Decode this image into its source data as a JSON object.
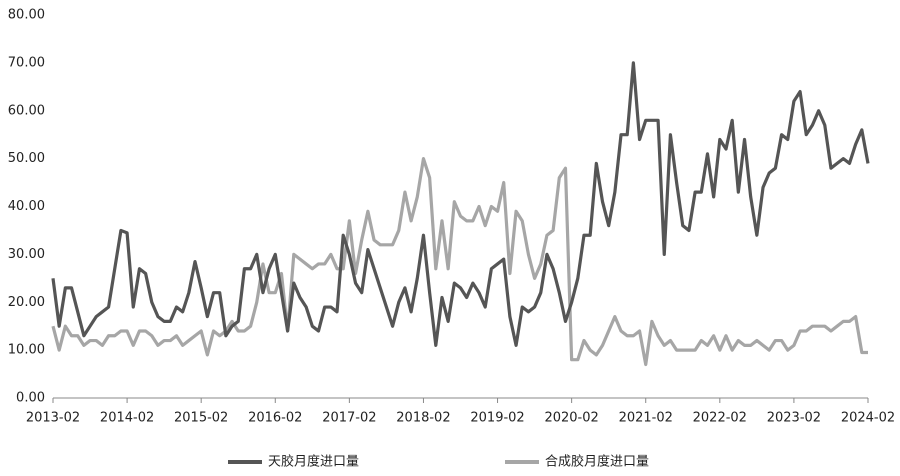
{
  "chart_data": {
    "type": "line",
    "x": [
      "2013-02",
      "2013-03",
      "2013-04",
      "2013-05",
      "2013-06",
      "2013-07",
      "2013-08",
      "2013-09",
      "2013-10",
      "2013-11",
      "2013-12",
      "2014-01",
      "2014-02",
      "2014-03",
      "2014-04",
      "2014-05",
      "2014-06",
      "2014-07",
      "2014-08",
      "2014-09",
      "2014-10",
      "2014-11",
      "2014-12",
      "2015-01",
      "2015-02",
      "2015-03",
      "2015-04",
      "2015-05",
      "2015-06",
      "2015-07",
      "2015-08",
      "2015-09",
      "2015-10",
      "2015-11",
      "2015-12",
      "2016-01",
      "2016-02",
      "2016-03",
      "2016-04",
      "2016-05",
      "2016-06",
      "2016-07",
      "2016-08",
      "2016-09",
      "2016-10",
      "2016-11",
      "2016-12",
      "2017-01",
      "2017-02",
      "2017-03",
      "2017-04",
      "2017-05",
      "2017-06",
      "2017-07",
      "2017-08",
      "2017-09",
      "2017-10",
      "2017-11",
      "2017-12",
      "2018-01",
      "2018-02",
      "2018-03",
      "2018-04",
      "2018-05",
      "2018-06",
      "2018-07",
      "2018-08",
      "2018-09",
      "2018-10",
      "2018-11",
      "2018-12",
      "2019-01",
      "2019-02",
      "2019-03",
      "2019-04",
      "2019-05",
      "2019-06",
      "2019-07",
      "2019-08",
      "2019-09",
      "2019-10",
      "2019-11",
      "2019-12",
      "2020-01",
      "2020-02",
      "2020-03",
      "2020-04",
      "2020-05",
      "2020-06",
      "2020-07",
      "2020-08",
      "2020-09",
      "2020-10",
      "2020-11",
      "2020-12",
      "2021-01",
      "2021-02",
      "2021-03",
      "2021-04",
      "2021-05",
      "2021-06",
      "2021-07",
      "2021-08",
      "2021-09",
      "2021-10",
      "2021-11",
      "2021-12",
      "2022-01",
      "2022-02",
      "2022-03",
      "2022-04",
      "2022-05",
      "2022-06",
      "2022-07",
      "2022-08",
      "2022-09",
      "2022-10",
      "2022-11",
      "2022-12",
      "2023-01",
      "2023-02",
      "2023-03",
      "2023-04",
      "2023-05",
      "2023-06",
      "2023-07",
      "2023-08",
      "2023-09",
      "2023-10",
      "2023-11",
      "2023-12",
      "2024-01",
      "2024-02"
    ],
    "series": [
      {
        "name": "天胶月度进口量",
        "color": "#555555",
        "values": [
          25,
          15,
          23,
          23,
          18,
          13,
          15,
          17,
          18,
          19,
          27,
          35,
          34.5,
          19,
          27,
          26,
          20,
          17,
          16,
          16,
          19,
          18,
          22,
          28.5,
          23,
          17,
          22,
          22,
          13,
          15,
          16,
          27,
          27,
          30,
          22,
          27,
          30,
          22,
          14,
          24,
          21,
          19,
          15,
          14,
          19,
          19,
          18,
          34,
          30,
          24,
          22,
          31,
          27,
          23,
          19,
          15,
          20,
          23,
          18,
          25,
          34,
          22,
          11,
          21,
          16,
          24,
          23,
          21,
          24,
          22,
          19,
          27,
          28,
          29,
          17,
          11,
          19,
          18,
          19,
          22,
          30,
          27,
          22,
          16,
          20,
          25,
          34,
          34,
          49,
          41,
          36,
          43,
          55,
          55,
          70,
          54,
          58,
          58,
          58,
          30,
          55,
          45,
          36,
          35,
          43,
          43,
          51,
          42,
          54,
          52,
          58,
          43,
          54,
          42,
          34,
          44,
          47,
          48,
          55,
          54,
          62,
          64,
          55,
          57,
          60,
          57,
          48,
          49,
          50,
          49,
          53,
          56,
          49
        ]
      },
      {
        "name": "合成胶月度进口量",
        "color": "#a6a6a6",
        "values": [
          15,
          10,
          15,
          13,
          13,
          11,
          12,
          12,
          11,
          13,
          13,
          14,
          14,
          11,
          14,
          14,
          13,
          11,
          12,
          12,
          13,
          11,
          12,
          13,
          14,
          9,
          14,
          13,
          14,
          16,
          14,
          14,
          15,
          20,
          28,
          22,
          22,
          26,
          14,
          30,
          29,
          28,
          27,
          28,
          28,
          30,
          27,
          27,
          37,
          26,
          33,
          39,
          33,
          32,
          32,
          32,
          35,
          43,
          37,
          42,
          50,
          46,
          27,
          37,
          27,
          41,
          38,
          37,
          37,
          40,
          36,
          40,
          39,
          45,
          26,
          39,
          37,
          30,
          25,
          28,
          34,
          35,
          46,
          48,
          8,
          8,
          12,
          10,
          9,
          11,
          14,
          17,
          14,
          13,
          13,
          14,
          7,
          16,
          13,
          11,
          12,
          10,
          10,
          10,
          10,
          12,
          11,
          13,
          10,
          13,
          10,
          12,
          11,
          11,
          12,
          11,
          10,
          12,
          12,
          10,
          11,
          14,
          14,
          15,
          15,
          15,
          14,
          15,
          16,
          16,
          17,
          9.5,
          9.5
        ]
      }
    ],
    "ylim": [
      0,
      80
    ],
    "yticks": [
      {
        "value": 0,
        "label": "0.00"
      },
      {
        "value": 10,
        "label": "10.00"
      },
      {
        "value": 20,
        "label": "20.00"
      },
      {
        "value": 30,
        "label": "30.00"
      },
      {
        "value": 40,
        "label": "40.00"
      },
      {
        "value": 50,
        "label": "50.00"
      },
      {
        "value": 60,
        "label": "60.00"
      },
      {
        "value": 70,
        "label": "70.00"
      },
      {
        "value": 80,
        "label": "80.00"
      }
    ],
    "xticks": [
      "2013-02",
      "2014-02",
      "2015-02",
      "2016-02",
      "2017-02",
      "2018-02",
      "2019-02",
      "2020-02",
      "2021-02",
      "2022-02",
      "2023-02",
      "2024-02"
    ],
    "grid": false
  }
}
